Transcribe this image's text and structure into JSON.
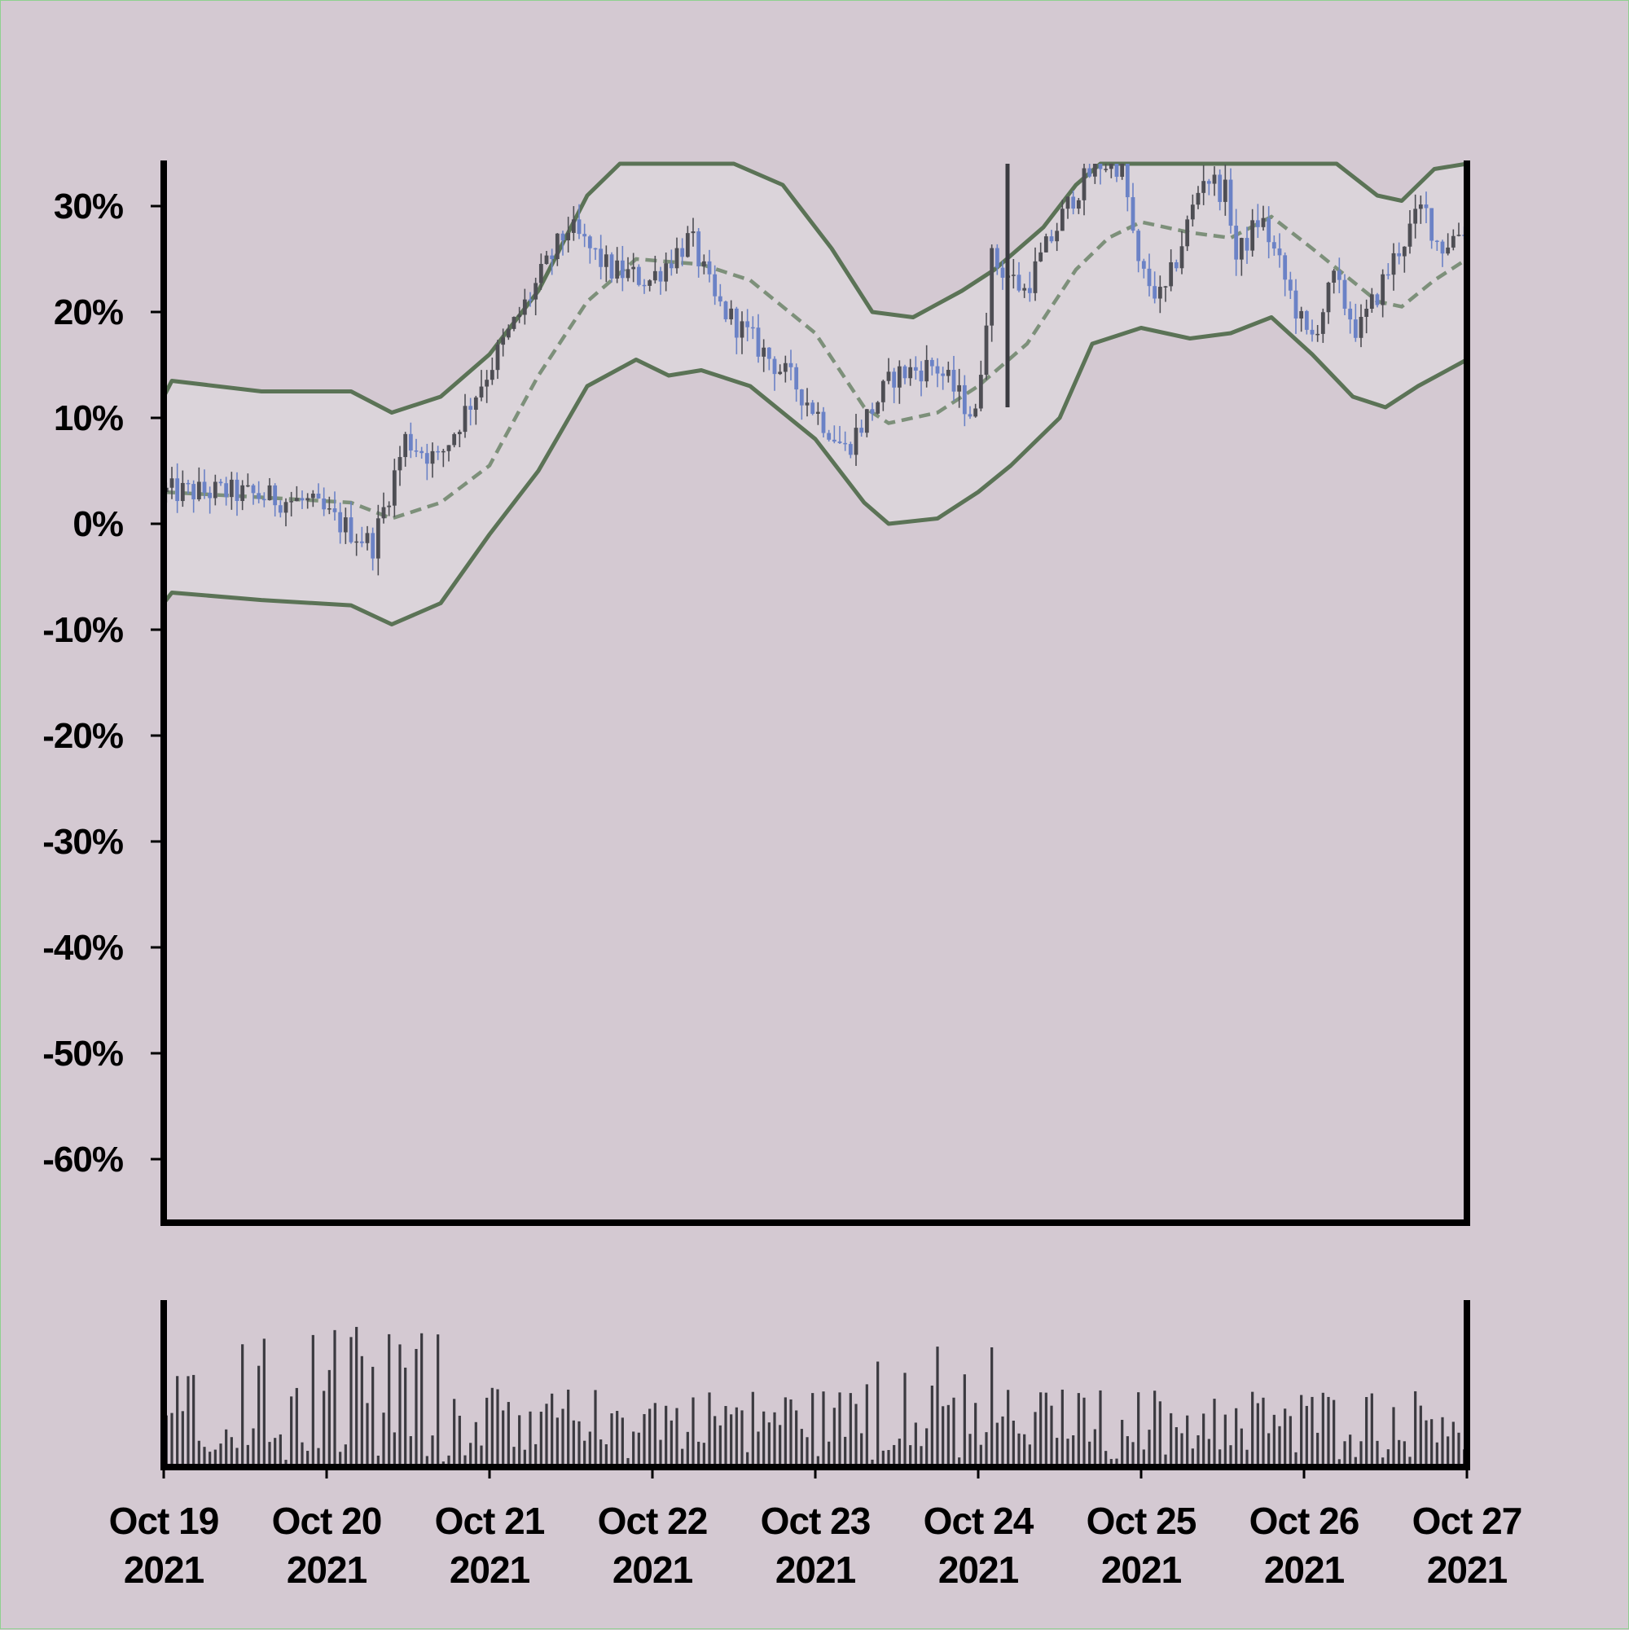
{
  "chart_data": {
    "type": "candlestick",
    "y_unit": "percent",
    "ylim": [
      -66,
      34
    ],
    "yticks": [
      "30%",
      "20%",
      "10%",
      "0%",
      "-10%",
      "-20%",
      "-30%",
      "-40%",
      "-50%",
      "-60%"
    ],
    "xticks": [
      {
        "line1": "Oct 19",
        "line2": "2021"
      },
      {
        "line1": "Oct 20",
        "line2": "2021"
      },
      {
        "line1": "Oct 21",
        "line2": "2021"
      },
      {
        "line1": "Oct 22",
        "line2": "2021"
      },
      {
        "line1": "Oct 23",
        "line2": "2021"
      },
      {
        "line1": "Oct 24",
        "line2": "2021"
      },
      {
        "line1": "Oct 25",
        "line2": "2021"
      },
      {
        "line1": "Oct 26",
        "line2": "2021"
      },
      {
        "line1": "Oct 27",
        "line2": "2021"
      }
    ],
    "x_range": [
      "2021-10-19",
      "2021-10-27"
    ],
    "price_path": [
      {
        "day": 0.0,
        "pct": 3
      },
      {
        "day": 0.4,
        "pct": 3
      },
      {
        "day": 0.9,
        "pct": 2
      },
      {
        "day": 1.3,
        "pct": -2
      },
      {
        "day": 1.5,
        "pct": 8
      },
      {
        "day": 1.7,
        "pct": 6
      },
      {
        "day": 2.1,
        "pct": 17
      },
      {
        "day": 2.5,
        "pct": 28
      },
      {
        "day": 2.75,
        "pct": 24
      },
      {
        "day": 3.0,
        "pct": 23
      },
      {
        "day": 3.25,
        "pct": 27
      },
      {
        "day": 3.4,
        "pct": 21
      },
      {
        "day": 3.9,
        "pct": 13
      },
      {
        "day": 4.2,
        "pct": 7
      },
      {
        "day": 4.5,
        "pct": 14
      },
      {
        "day": 4.75,
        "pct": 15
      },
      {
        "day": 5.0,
        "pct": 10
      },
      {
        "day": 5.1,
        "pct": 25
      },
      {
        "day": 5.3,
        "pct": 22
      },
      {
        "day": 5.6,
        "pct": 31
      },
      {
        "day": 5.75,
        "pct": 34
      },
      {
        "day": 5.9,
        "pct": 34
      },
      {
        "day": 6.0,
        "pct": 24
      },
      {
        "day": 6.15,
        "pct": 21
      },
      {
        "day": 6.4,
        "pct": 33
      },
      {
        "day": 6.55,
        "pct": 31
      },
      {
        "day": 6.6,
        "pct": 25
      },
      {
        "day": 6.75,
        "pct": 29
      },
      {
        "day": 6.95,
        "pct": 21
      },
      {
        "day": 7.05,
        "pct": 17
      },
      {
        "day": 7.2,
        "pct": 23
      },
      {
        "day": 7.35,
        "pct": 18
      },
      {
        "day": 7.6,
        "pct": 26
      },
      {
        "day": 7.75,
        "pct": 30
      },
      {
        "day": 7.85,
        "pct": 26
      },
      {
        "day": 8.0,
        "pct": 28
      }
    ],
    "middle_band": [
      {
        "day": 0.0,
        "pct": 3
      },
      {
        "day": 0.6,
        "pct": 2.5
      },
      {
        "day": 1.15,
        "pct": 2
      },
      {
        "day": 1.4,
        "pct": 0.5
      },
      {
        "day": 1.7,
        "pct": 2
      },
      {
        "day": 2.0,
        "pct": 5.5
      },
      {
        "day": 2.3,
        "pct": 14
      },
      {
        "day": 2.6,
        "pct": 21
      },
      {
        "day": 2.9,
        "pct": 25
      },
      {
        "day": 3.3,
        "pct": 24.5
      },
      {
        "day": 3.6,
        "pct": 23
      },
      {
        "day": 4.0,
        "pct": 18
      },
      {
        "day": 4.3,
        "pct": 11
      },
      {
        "day": 4.45,
        "pct": 9.5
      },
      {
        "day": 4.75,
        "pct": 10.5
      },
      {
        "day": 5.0,
        "pct": 13
      },
      {
        "day": 5.3,
        "pct": 17
      },
      {
        "day": 5.6,
        "pct": 24
      },
      {
        "day": 5.8,
        "pct": 27
      },
      {
        "day": 6.0,
        "pct": 28.5
      },
      {
        "day": 6.3,
        "pct": 27.5
      },
      {
        "day": 6.55,
        "pct": 27
      },
      {
        "day": 6.8,
        "pct": 29
      },
      {
        "day": 7.05,
        "pct": 26
      },
      {
        "day": 7.25,
        "pct": 23.5
      },
      {
        "day": 7.45,
        "pct": 21
      },
      {
        "day": 7.6,
        "pct": 20.5
      },
      {
        "day": 7.8,
        "pct": 23
      },
      {
        "day": 8.0,
        "pct": 25
      }
    ],
    "upper_band": [
      {
        "day": 0.0,
        "pct": 12
      },
      {
        "day": 0.05,
        "pct": 13.5
      },
      {
        "day": 0.6,
        "pct": 12.5
      },
      {
        "day": 1.15,
        "pct": 12.5
      },
      {
        "day": 1.4,
        "pct": 10.5
      },
      {
        "day": 1.7,
        "pct": 12
      },
      {
        "day": 2.0,
        "pct": 16
      },
      {
        "day": 2.3,
        "pct": 22
      },
      {
        "day": 2.6,
        "pct": 31
      },
      {
        "day": 2.8,
        "pct": 34
      },
      {
        "day": 3.5,
        "pct": 34
      },
      {
        "day": 3.8,
        "pct": 32
      },
      {
        "day": 4.1,
        "pct": 26
      },
      {
        "day": 4.35,
        "pct": 20
      },
      {
        "day": 4.6,
        "pct": 19.5
      },
      {
        "day": 4.9,
        "pct": 22
      },
      {
        "day": 5.1,
        "pct": 24
      },
      {
        "day": 5.4,
        "pct": 28
      },
      {
        "day": 5.6,
        "pct": 32
      },
      {
        "day": 5.75,
        "pct": 34
      },
      {
        "day": 7.2,
        "pct": 34
      },
      {
        "day": 7.45,
        "pct": 31
      },
      {
        "day": 7.6,
        "pct": 30.5
      },
      {
        "day": 7.8,
        "pct": 33.5
      },
      {
        "day": 8.0,
        "pct": 34
      }
    ],
    "lower_band": [
      {
        "day": 0.0,
        "pct": -7.5
      },
      {
        "day": 0.05,
        "pct": -6.5
      },
      {
        "day": 0.6,
        "pct": -7.2
      },
      {
        "day": 1.15,
        "pct": -7.7
      },
      {
        "day": 1.4,
        "pct": -9.5
      },
      {
        "day": 1.7,
        "pct": -7.5
      },
      {
        "day": 2.0,
        "pct": -1
      },
      {
        "day": 2.3,
        "pct": 5
      },
      {
        "day": 2.6,
        "pct": 13
      },
      {
        "day": 2.9,
        "pct": 15.5
      },
      {
        "day": 3.1,
        "pct": 14
      },
      {
        "day": 3.3,
        "pct": 14.5
      },
      {
        "day": 3.6,
        "pct": 13
      },
      {
        "day": 4.0,
        "pct": 8
      },
      {
        "day": 4.3,
        "pct": 2
      },
      {
        "day": 4.45,
        "pct": 0
      },
      {
        "day": 4.75,
        "pct": 0.5
      },
      {
        "day": 5.0,
        "pct": 3
      },
      {
        "day": 5.2,
        "pct": 5.5
      },
      {
        "day": 5.5,
        "pct": 10
      },
      {
        "day": 5.7,
        "pct": 17
      },
      {
        "day": 6.0,
        "pct": 18.5
      },
      {
        "day": 6.3,
        "pct": 17.5
      },
      {
        "day": 6.55,
        "pct": 18
      },
      {
        "day": 6.8,
        "pct": 19.5
      },
      {
        "day": 7.05,
        "pct": 16
      },
      {
        "day": 7.3,
        "pct": 12
      },
      {
        "day": 7.5,
        "pct": 11
      },
      {
        "day": 7.7,
        "pct": 13
      },
      {
        "day": 8.0,
        "pct": 15.5
      }
    ],
    "volume_scale": "relative (no axis labels shown)",
    "colors": {
      "background": "#d4c9d2",
      "band_fill": "#dbd4da",
      "band_line": "#5b7356",
      "middle_line": "#7d907a",
      "candle_up": "#4e4e54",
      "candle_down": "#6b82c6",
      "volume_bar": "#3b3a40",
      "axes": "#000000"
    },
    "grid": false,
    "legend": "none"
  }
}
